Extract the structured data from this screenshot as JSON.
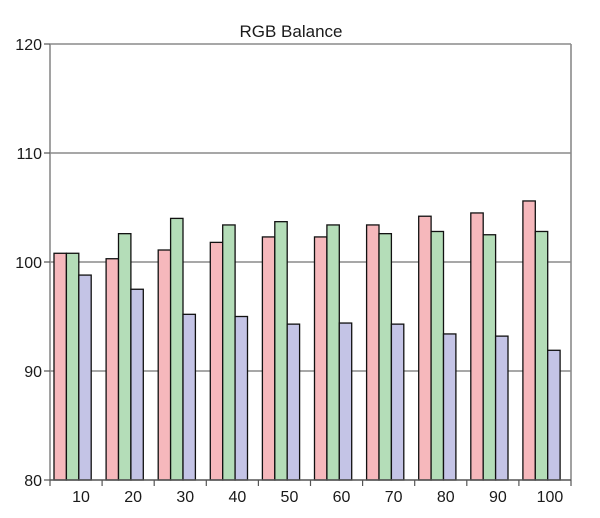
{
  "chart_data": {
    "type": "bar",
    "title": "RGB Balance",
    "xlabel": "",
    "ylabel": "",
    "categories": [
      "10",
      "20",
      "30",
      "40",
      "50",
      "60",
      "70",
      "80",
      "90",
      "100"
    ],
    "ylim": [
      80,
      120
    ],
    "yticks": [
      80,
      90,
      100,
      110,
      120
    ],
    "grid": true,
    "legend": "none",
    "series": [
      {
        "color": "#f6b8bc",
        "values": [
          100.8,
          100.3,
          101.1,
          101.8,
          102.3,
          102.3,
          103.4,
          104.2,
          104.5,
          105.6
        ]
      },
      {
        "color": "#b4ddb8",
        "values": [
          100.8,
          102.6,
          104.0,
          103.4,
          103.7,
          103.4,
          102.6,
          102.8,
          102.5,
          102.8
        ]
      },
      {
        "color": "#c4c4e6",
        "values": [
          98.8,
          97.5,
          95.2,
          95.0,
          94.3,
          94.4,
          94.3,
          93.4,
          93.2,
          91.9
        ]
      }
    ]
  }
}
